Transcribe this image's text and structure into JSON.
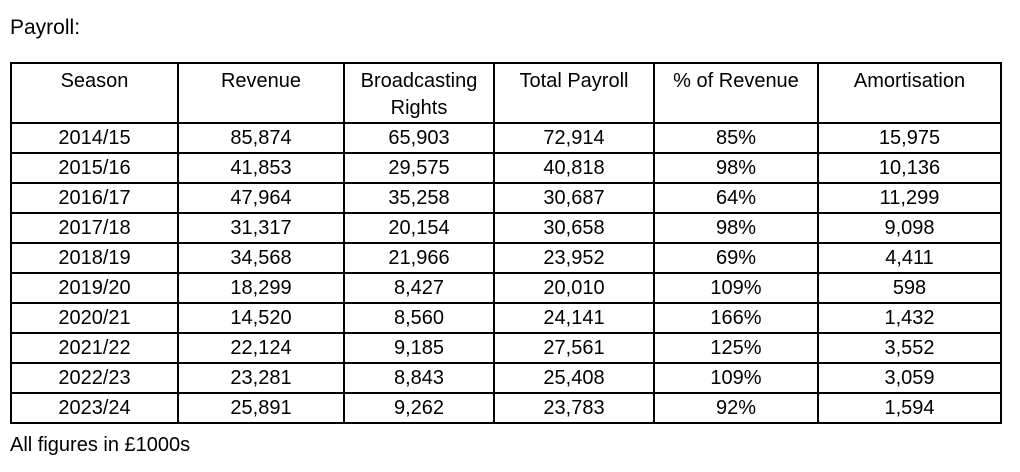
{
  "title": "Payroll:",
  "footnote": "All figures in £1000s",
  "colors": {
    "text": "#000000",
    "border": "#000000",
    "background": "#ffffff"
  },
  "table": {
    "columns": [
      "Season",
      "Revenue",
      "Broadcasting Rights",
      "Total Payroll",
      "% of Revenue",
      "Amortisation"
    ],
    "rows": [
      [
        "2014/15",
        "85,874",
        "65,903",
        "72,914",
        "85%",
        "15,975"
      ],
      [
        "2015/16",
        "41,853",
        "29,575",
        "40,818",
        "98%",
        "10,136"
      ],
      [
        "2016/17",
        "47,964",
        "35,258",
        "30,687",
        "64%",
        "11,299"
      ],
      [
        "2017/18",
        "31,317",
        "20,154",
        "30,658",
        "98%",
        "9,098"
      ],
      [
        "2018/19",
        "34,568",
        "21,966",
        "23,952",
        "69%",
        "4,411"
      ],
      [
        "2019/20",
        "18,299",
        "8,427",
        "20,010",
        "109%",
        "598"
      ],
      [
        "2020/21",
        "14,520",
        "8,560",
        "24,141",
        "166%",
        "1,432"
      ],
      [
        "2021/22",
        "22,124",
        "9,185",
        "27,561",
        "125%",
        "3,552"
      ],
      [
        "2022/23",
        "23,281",
        "8,843",
        "25,408",
        "109%",
        "3,059"
      ],
      [
        "2023/24",
        "25,891",
        "9,262",
        "23,783",
        "92%",
        "1,594"
      ]
    ]
  }
}
